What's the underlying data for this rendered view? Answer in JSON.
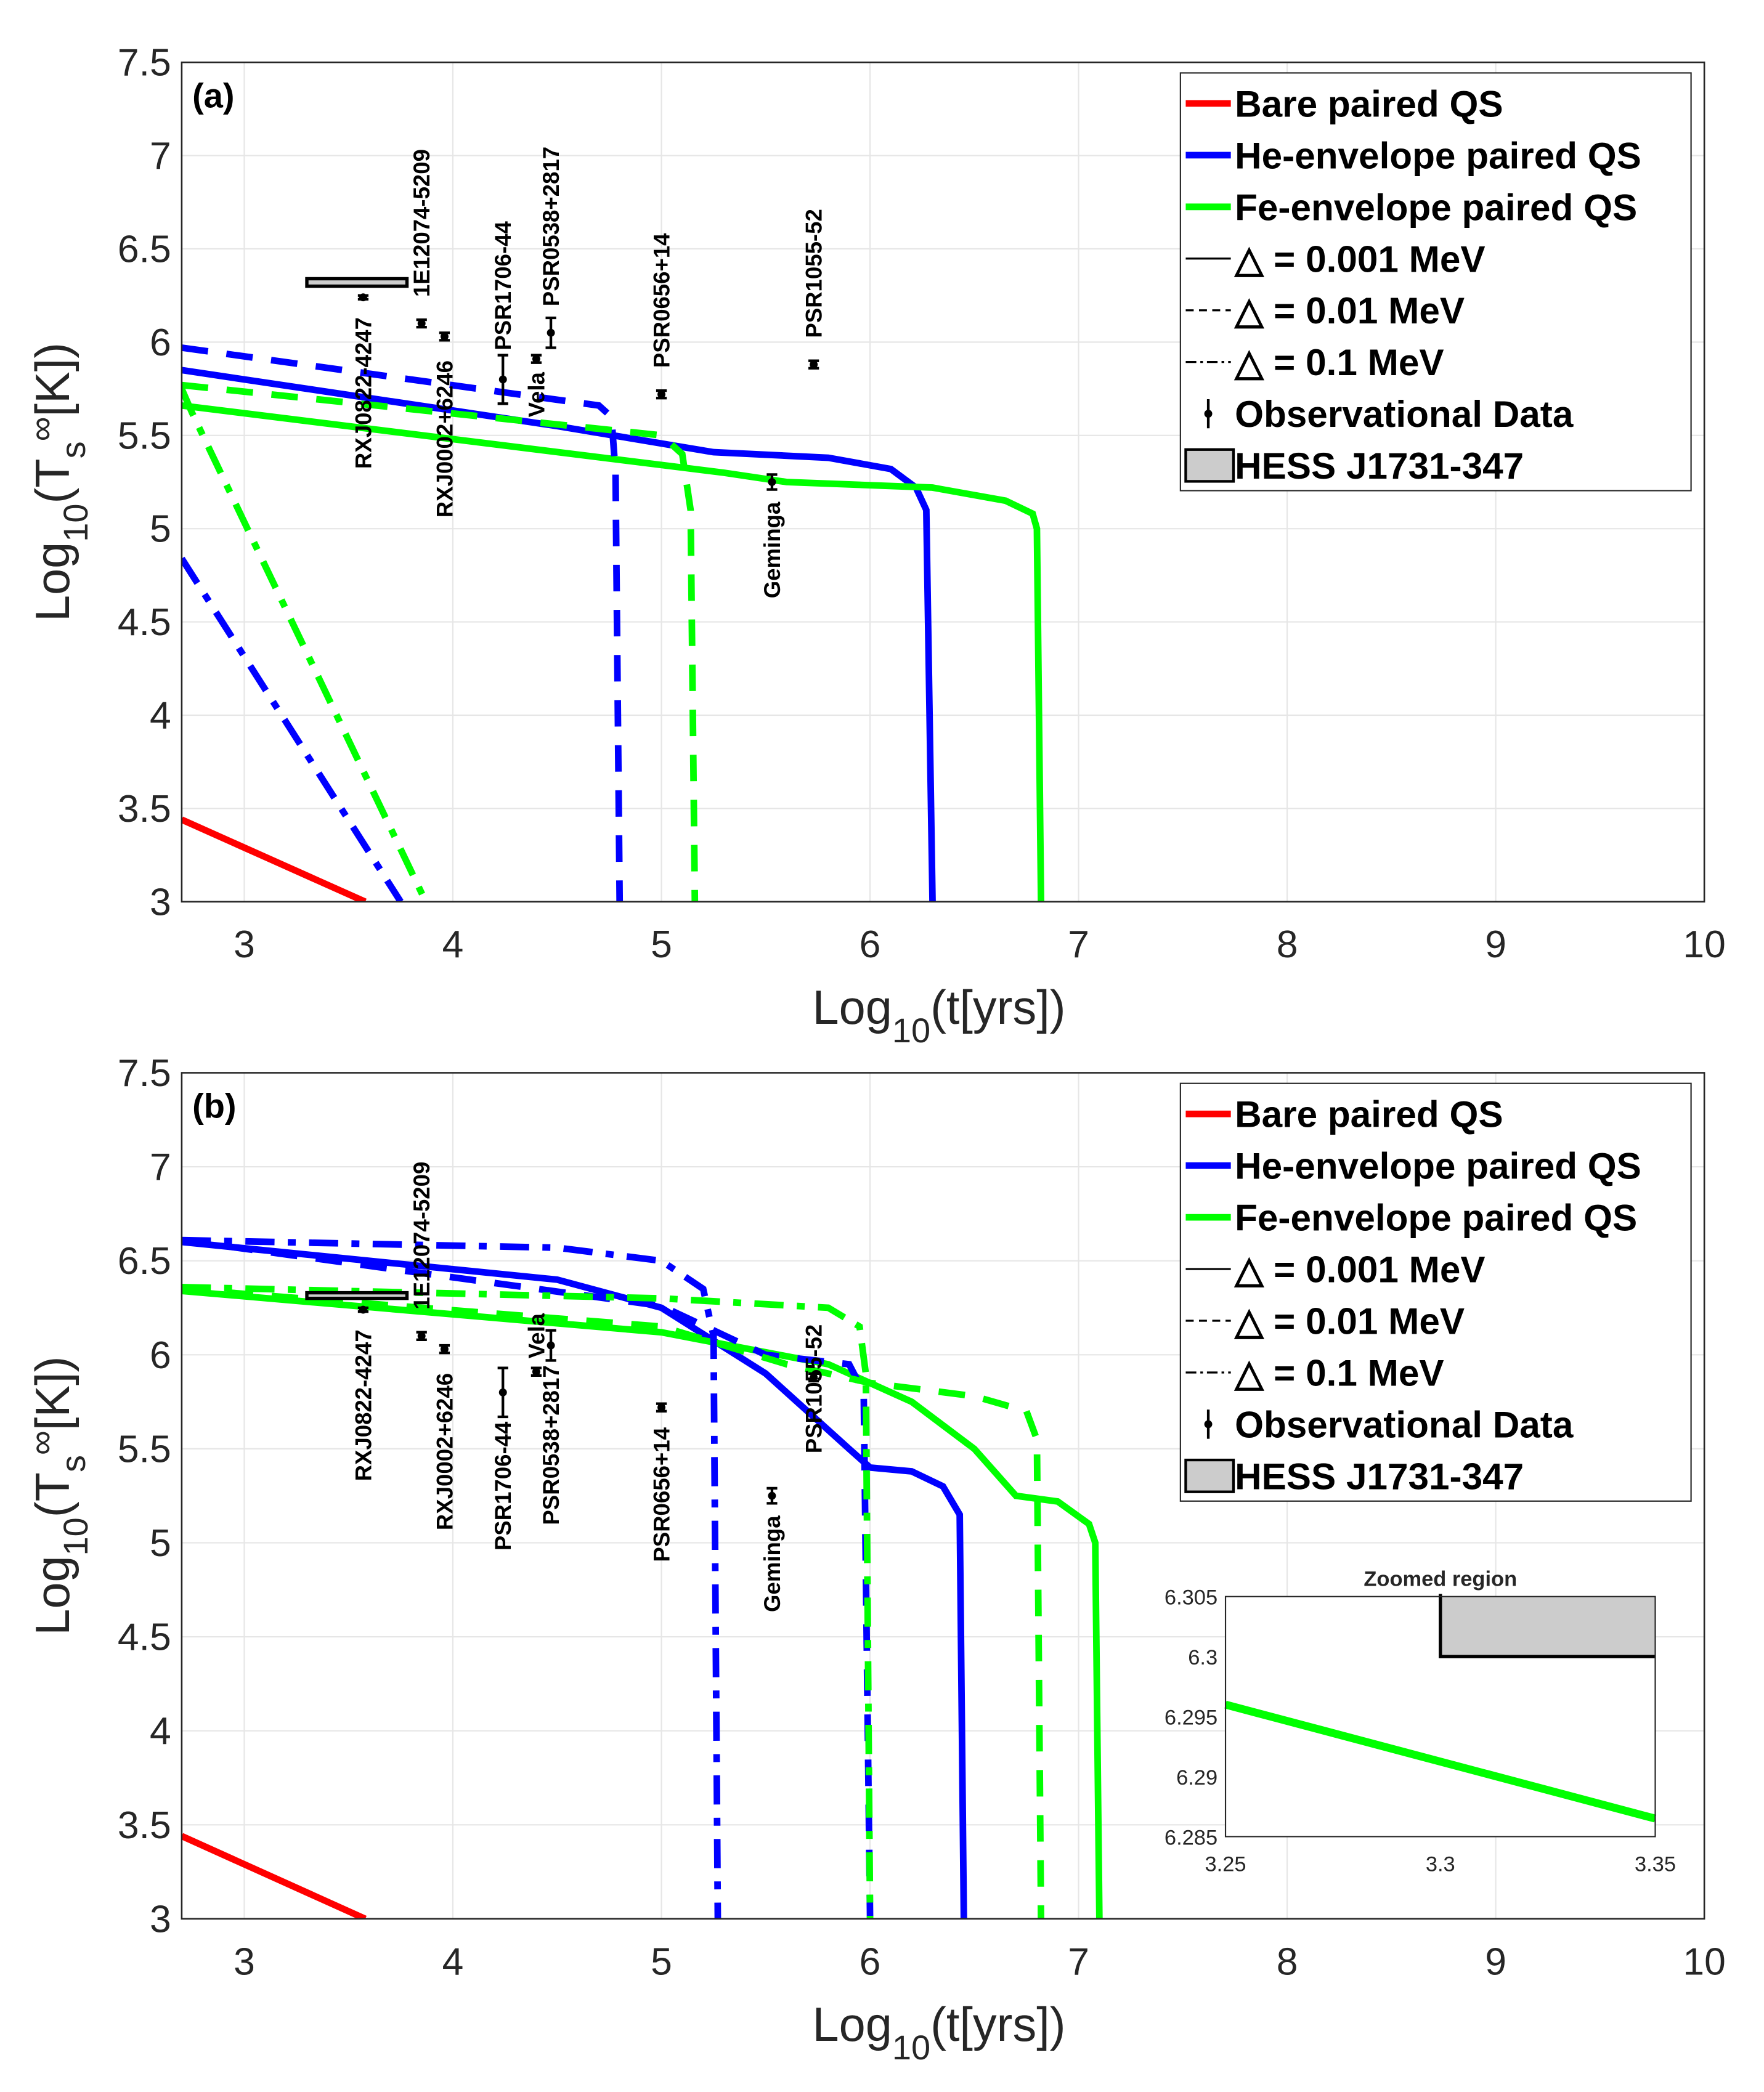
{
  "chart_data": [
    {
      "type": "line",
      "panel_label": "(a)",
      "xlabel": "Log10(t[yrs])",
      "ylabel": "Log10(Ts∞[K])",
      "xlim": [
        2.7,
        10
      ],
      "ylim": [
        3,
        7.5
      ],
      "xticks": [
        "3",
        "4",
        "5",
        "6",
        "7",
        "8",
        "9",
        "10"
      ],
      "yticks": [
        "3",
        "3.5",
        "4",
        "4.5",
        "5",
        "5.5",
        "6",
        "6.5",
        "7",
        "7.5"
      ],
      "grid": true,
      "legend_position": "top-right",
      "legend": [
        "Bare paired QS",
        "He-envelope paired QS",
        "Fe-envelope paired QS",
        "△ = 0.001 MeV",
        "△ = 0.01 MeV",
        "△ = 0.1 MeV",
        "Observational Data",
        "HESS J1731-347"
      ],
      "series": [
        {
          "name": "Bare paired QS, △ = 0.001 MeV",
          "color": "#ff0000",
          "style": "solid",
          "x": [
            2.7,
            3.58
          ],
          "y": [
            3.44,
            3.0
          ]
        },
        {
          "name": "He-envelope, △ = 0.001 MeV",
          "color": "#0000ff",
          "style": "solid",
          "x": [
            2.7,
            4.5,
            5.25,
            5.8,
            6.1,
            6.22,
            6.27,
            6.3
          ],
          "y": [
            5.85,
            5.55,
            5.41,
            5.38,
            5.32,
            5.22,
            5.1,
            3.0
          ]
        },
        {
          "name": "Fe-envelope, △ = 0.001 MeV",
          "color": "#00ff00",
          "style": "solid",
          "x": [
            2.7,
            5.3,
            5.6,
            6.3,
            6.65,
            6.78,
            6.8,
            6.82
          ],
          "y": [
            5.66,
            5.3,
            5.25,
            5.22,
            5.15,
            5.08,
            5.0,
            3.0
          ]
        },
        {
          "name": "He-envelope, △ = 0.01 MeV",
          "color": "#0000ff",
          "style": "dash",
          "x": [
            2.7,
            4.7,
            4.76,
            4.78,
            4.8
          ],
          "y": [
            5.97,
            5.66,
            5.6,
            5.3,
            3.0
          ]
        },
        {
          "name": "Fe-envelope, △ = 0.01 MeV",
          "color": "#00ff00",
          "style": "dash",
          "x": [
            2.7,
            5.0,
            5.1,
            5.14,
            5.16
          ],
          "y": [
            5.77,
            5.5,
            5.4,
            5.1,
            3.0
          ]
        },
        {
          "name": "He-envelope, △ = 0.1 MeV",
          "color": "#0000ff",
          "style": "dashdot",
          "x": [
            2.7,
            3.75
          ],
          "y": [
            4.84,
            3.0
          ]
        },
        {
          "name": "Fe-envelope, △ = 0.1 MeV",
          "color": "#00ff00",
          "style": "dashdot",
          "x": [
            2.7,
            2.75,
            3.87
          ],
          "y": [
            5.75,
            5.62,
            3.0
          ]
        }
      ],
      "hess": {
        "x": [
          3.3,
          3.78
        ],
        "y": [
          6.3,
          6.34
        ]
      }
    },
    {
      "type": "line",
      "panel_label": "(b)",
      "xlabel": "Log10(t[yrs])",
      "ylabel": "Log10(Ts∞[K])",
      "xlim": [
        2.7,
        10
      ],
      "ylim": [
        3,
        7.5
      ],
      "xticks": [
        "3",
        "4",
        "5",
        "6",
        "7",
        "8",
        "9",
        "10"
      ],
      "yticks": [
        "3",
        "3.5",
        "4",
        "4.5",
        "5",
        "5.5",
        "6",
        "6.5",
        "7",
        "7.5"
      ],
      "grid": true,
      "legend_position": "top-right",
      "legend": [
        "Bare paired QS",
        "He-envelope paired QS",
        "Fe-envelope paired QS",
        "△ = 0.001 MeV",
        "△ = 0.01 MeV",
        "△ = 0.1 MeV",
        "Observational Data",
        "HESS J1731-347"
      ],
      "series": [
        {
          "name": "Bare paired QS, △ = 0.001 MeV",
          "color": "#ff0000",
          "style": "solid",
          "x": [
            2.7,
            3.58
          ],
          "y": [
            3.44,
            3.0
          ]
        },
        {
          "name": "He-envelope, △ = 0.001 MeV",
          "color": "#0000ff",
          "style": "solid",
          "x": [
            2.7,
            4.5,
            5.0,
            5.5,
            5.9,
            6.0,
            6.2,
            6.35,
            6.43,
            6.45
          ],
          "y": [
            6.6,
            6.4,
            6.25,
            5.9,
            5.5,
            5.4,
            5.38,
            5.3,
            5.15,
            3.0
          ]
        },
        {
          "name": "Fe-envelope, △ = 0.001 MeV",
          "color": "#00ff00",
          "style": "solid",
          "x": [
            2.7,
            5.0,
            5.8,
            6.2,
            6.5,
            6.7,
            6.9,
            7.05,
            7.08,
            7.1
          ],
          "y": [
            6.34,
            6.12,
            5.95,
            5.75,
            5.5,
            5.25,
            5.22,
            5.1,
            5.0,
            3.0
          ]
        },
        {
          "name": "He-envelope, △ = 0.01 MeV",
          "color": "#0000ff",
          "style": "dash",
          "x": [
            2.7,
            5.0,
            5.5,
            5.9,
            5.97,
            6.0
          ],
          "y": [
            6.61,
            6.26,
            6.0,
            5.95,
            5.8,
            3.0
          ]
        },
        {
          "name": "Fe-envelope, △ = 0.01 MeV",
          "color": "#00ff00",
          "style": "dash",
          "x": [
            2.7,
            5.0,
            5.6,
            6.0,
            6.5,
            6.75,
            6.8,
            6.82
          ],
          "y": [
            6.35,
            6.15,
            5.95,
            5.85,
            5.78,
            5.7,
            5.55,
            3.0
          ]
        },
        {
          "name": "He-envelope, △ = 0.1 MeV",
          "color": "#0000ff",
          "style": "dashdot",
          "x": [
            2.7,
            4.5,
            5.0,
            5.2,
            5.25,
            5.27
          ],
          "y": [
            6.61,
            6.57,
            6.5,
            6.35,
            6.1,
            3.0
          ]
        },
        {
          "name": "Fe-envelope, △ = 0.1 MeV",
          "color": "#00ff00",
          "style": "dashdot",
          "x": [
            2.7,
            5.0,
            5.8,
            5.95,
            5.98,
            6.0
          ],
          "y": [
            6.36,
            6.3,
            6.25,
            6.15,
            5.9,
            3.0
          ]
        }
      ],
      "hess": {
        "x": [
          3.3,
          3.78
        ],
        "y": [
          6.3,
          6.33
        ]
      },
      "inset": {
        "title": "Zoomed region",
        "xlim": [
          3.25,
          3.35
        ],
        "ylim": [
          6.285,
          6.305
        ],
        "xticks": [
          "3.25",
          "3.3",
          "3.35"
        ],
        "yticks": [
          "6.285",
          "6.29",
          "6.295",
          "6.3",
          "6.305"
        ],
        "series": {
          "color": "#00ff00",
          "x": [
            3.25,
            3.35
          ],
          "y": [
            6.296,
            6.2865
          ]
        },
        "hess": {
          "x": [
            3.3,
            3.35
          ],
          "y": [
            6.3,
            6.305
          ]
        }
      }
    }
  ],
  "observations": [
    {
      "name": "RXJ0822-4247",
      "x": 3.57,
      "y": 6.24,
      "err": 0.01
    },
    {
      "name": "1E12074-5209",
      "x": 3.85,
      "y": 6.1,
      "err": 0.02
    },
    {
      "name": "RXJ0002+6246",
      "x": 3.96,
      "y": 6.03,
      "err": 0.02
    },
    {
      "name": "PSR1706-44",
      "x": 4.24,
      "y": 5.8,
      "err": 0.13
    },
    {
      "name": "Vela",
      "x": 4.4,
      "y": 5.91,
      "err": 0.02
    },
    {
      "name": "PSR0538+2817",
      "x": 4.47,
      "y": 6.05,
      "err": 0.08
    },
    {
      "name": "PSR0656+14",
      "x": 5.0,
      "y": 5.72,
      "err": 0.02
    },
    {
      "name": "Geminga",
      "x": 5.53,
      "y": 5.25,
      "err": 0.04
    },
    {
      "name": "PSR1055-52",
      "x": 5.73,
      "y": 5.88,
      "err": 0.02
    }
  ],
  "colors": {
    "bare": "#ff0000",
    "he": "#0000ff",
    "fe": "#00ff00",
    "hess_fill": "#cccccc"
  }
}
